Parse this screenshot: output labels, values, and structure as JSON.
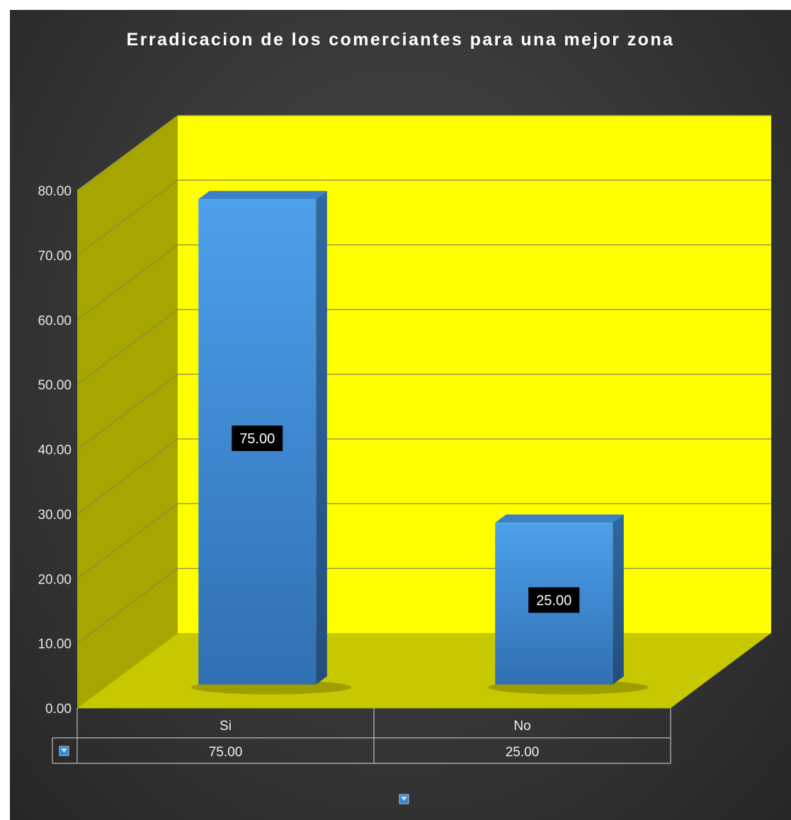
{
  "chart_data": {
    "type": "bar",
    "title": "Erradicacion de los comerciantes para una mejor zona",
    "categories": [
      "Si",
      "No"
    ],
    "series": [
      {
        "values": [
          75.0,
          25.0
        ]
      }
    ],
    "data_labels": [
      "75.00",
      "25.00"
    ],
    "table_values": [
      "75.00",
      "25.00"
    ],
    "y_ticks": [
      "0.00",
      "10.00",
      "20.00",
      "30.00",
      "40.00",
      "50.00",
      "60.00",
      "70.00",
      "80.00"
    ],
    "ylim": [
      0,
      80
    ],
    "grid": true,
    "legend": "bottom-center",
    "data_table": true,
    "three_d": true,
    "colors": {
      "bar_front": "#4a9ae6",
      "bar_side": "#2b5f96",
      "bar_top": "#3c80c8",
      "back_wall": "#ffff00",
      "side_wall": "#a6a600",
      "floor": "#c8c800",
      "background": "#353535",
      "gridline": "#8a8a40"
    },
    "legend_icon": "blue-square-legend-icon"
  }
}
